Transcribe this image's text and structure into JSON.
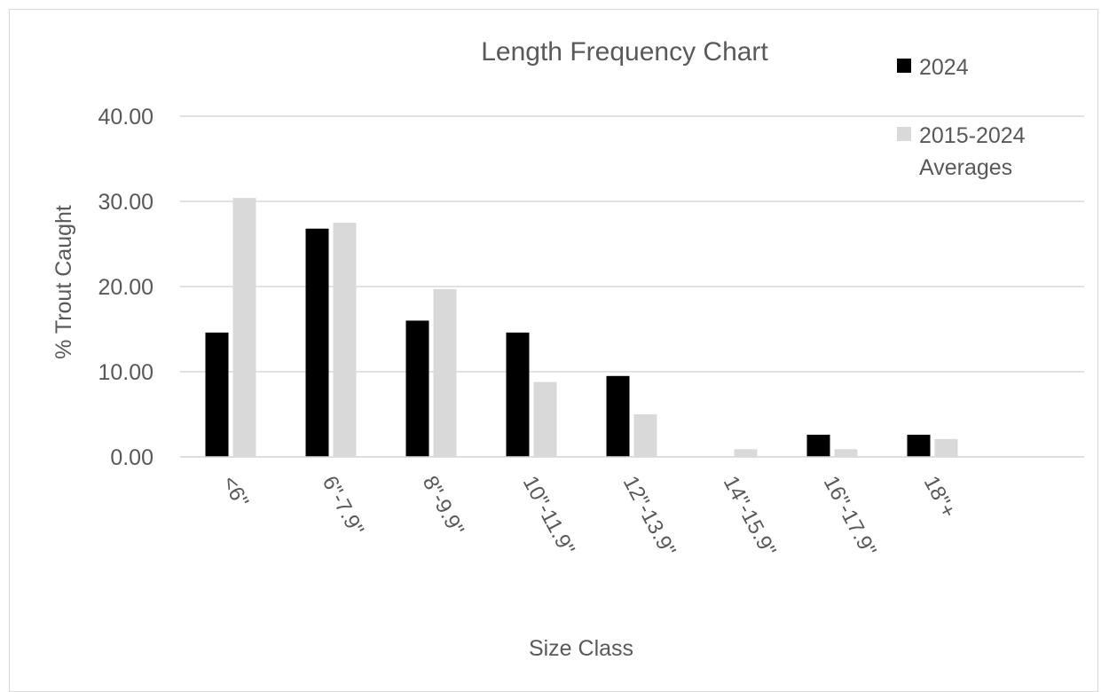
{
  "chart_data": {
    "type": "bar",
    "title": "Length Frequency Chart",
    "xlabel": "Size Class",
    "ylabel": "% Trout Caught",
    "categories": [
      "<6\"",
      "6\"-7.9\"",
      "8\"-9.9\"",
      "10\"-11.9\"",
      "12\"-13.9\"",
      "14\"-15.9\"",
      "16\"-17.9\"",
      "18\"+"
    ],
    "series": [
      {
        "name": "2024",
        "color": "#000000",
        "values": [
          14.6,
          26.8,
          16.0,
          14.6,
          9.5,
          0.0,
          2.6,
          2.6
        ]
      },
      {
        "name": "2015-2024 Averages",
        "name_lines": [
          "2015-2024",
          "Averages"
        ],
        "color": "#d9d9d9",
        "values": [
          30.4,
          27.5,
          19.7,
          8.8,
          5.0,
          0.9,
          0.9,
          2.1
        ]
      }
    ],
    "ylim": [
      0,
      40
    ],
    "yticks": [
      "0.00",
      "10.00",
      "20.00",
      "30.00",
      "40.00"
    ],
    "grid": true,
    "legend_position": "top-right"
  }
}
